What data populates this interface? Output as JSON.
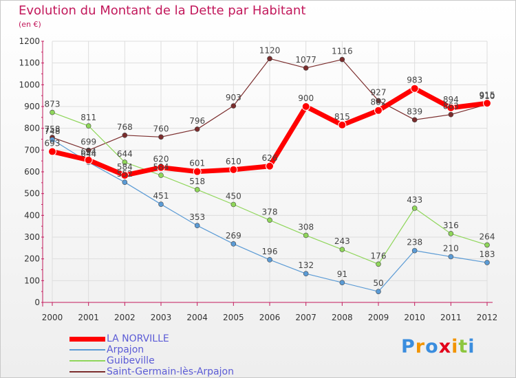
{
  "header": {
    "title": "Evolution du Montant de la Dette par Habitant",
    "subtitle": "(en €)"
  },
  "logo": {
    "text": "Proxiti",
    "colors": [
      "#3a8dde",
      "#f29400",
      "#3a8dde",
      "#e2001a",
      "#f29400",
      "#8dc63f",
      "#3a8dde"
    ]
  },
  "chart_data": {
    "type": "line",
    "title": "Evolution du Montant de la Dette par Habitant",
    "subtitle": "(en €)",
    "xlabel": "",
    "ylabel": "",
    "x": [
      "2000",
      "2001",
      "2002",
      "2003",
      "2004",
      "2005",
      "2006",
      "2007",
      "2008",
      "2009",
      "2010",
      "2011",
      "2012"
    ],
    "ylim": [
      0,
      1200
    ],
    "yticks": [
      0,
      100,
      200,
      300,
      400,
      500,
      600,
      700,
      800,
      900,
      1000,
      1100,
      1200
    ],
    "grid": true,
    "legend_position": "bottom-left",
    "series": [
      {
        "name": "Saint-Germain-lès-Arpajon",
        "color": "#7b2d2d",
        "width": 1.2,
        "values": [
          758,
          699,
          768,
          760,
          796,
          903,
          1120,
          1077,
          1116,
          927,
          839,
          863,
          910
        ]
      },
      {
        "name": "Guibeville",
        "color": "#8fd65a",
        "width": 1.2,
        "values": [
          873,
          811,
          644,
          584,
          518,
          450,
          378,
          308,
          243,
          176,
          433,
          316,
          264
        ]
      },
      {
        "name": "Arpajon",
        "color": "#5b9bd5",
        "width": 1.2,
        "values": [
          748,
          644,
          552,
          451,
          353,
          269,
          196,
          132,
          91,
          50,
          238,
          210,
          183
        ]
      },
      {
        "name": "LA NORVILLE",
        "color": "#ff0000",
        "width": 7,
        "values": [
          693,
          654,
          584,
          620,
          601,
          610,
          626,
          900,
          815,
          882,
          983,
          894,
          915
        ]
      }
    ],
    "legend_order": [
      "LA NORVILLE",
      "Arpajon",
      "Guibeville",
      "Saint-Germain-lès-Arpajon"
    ]
  }
}
